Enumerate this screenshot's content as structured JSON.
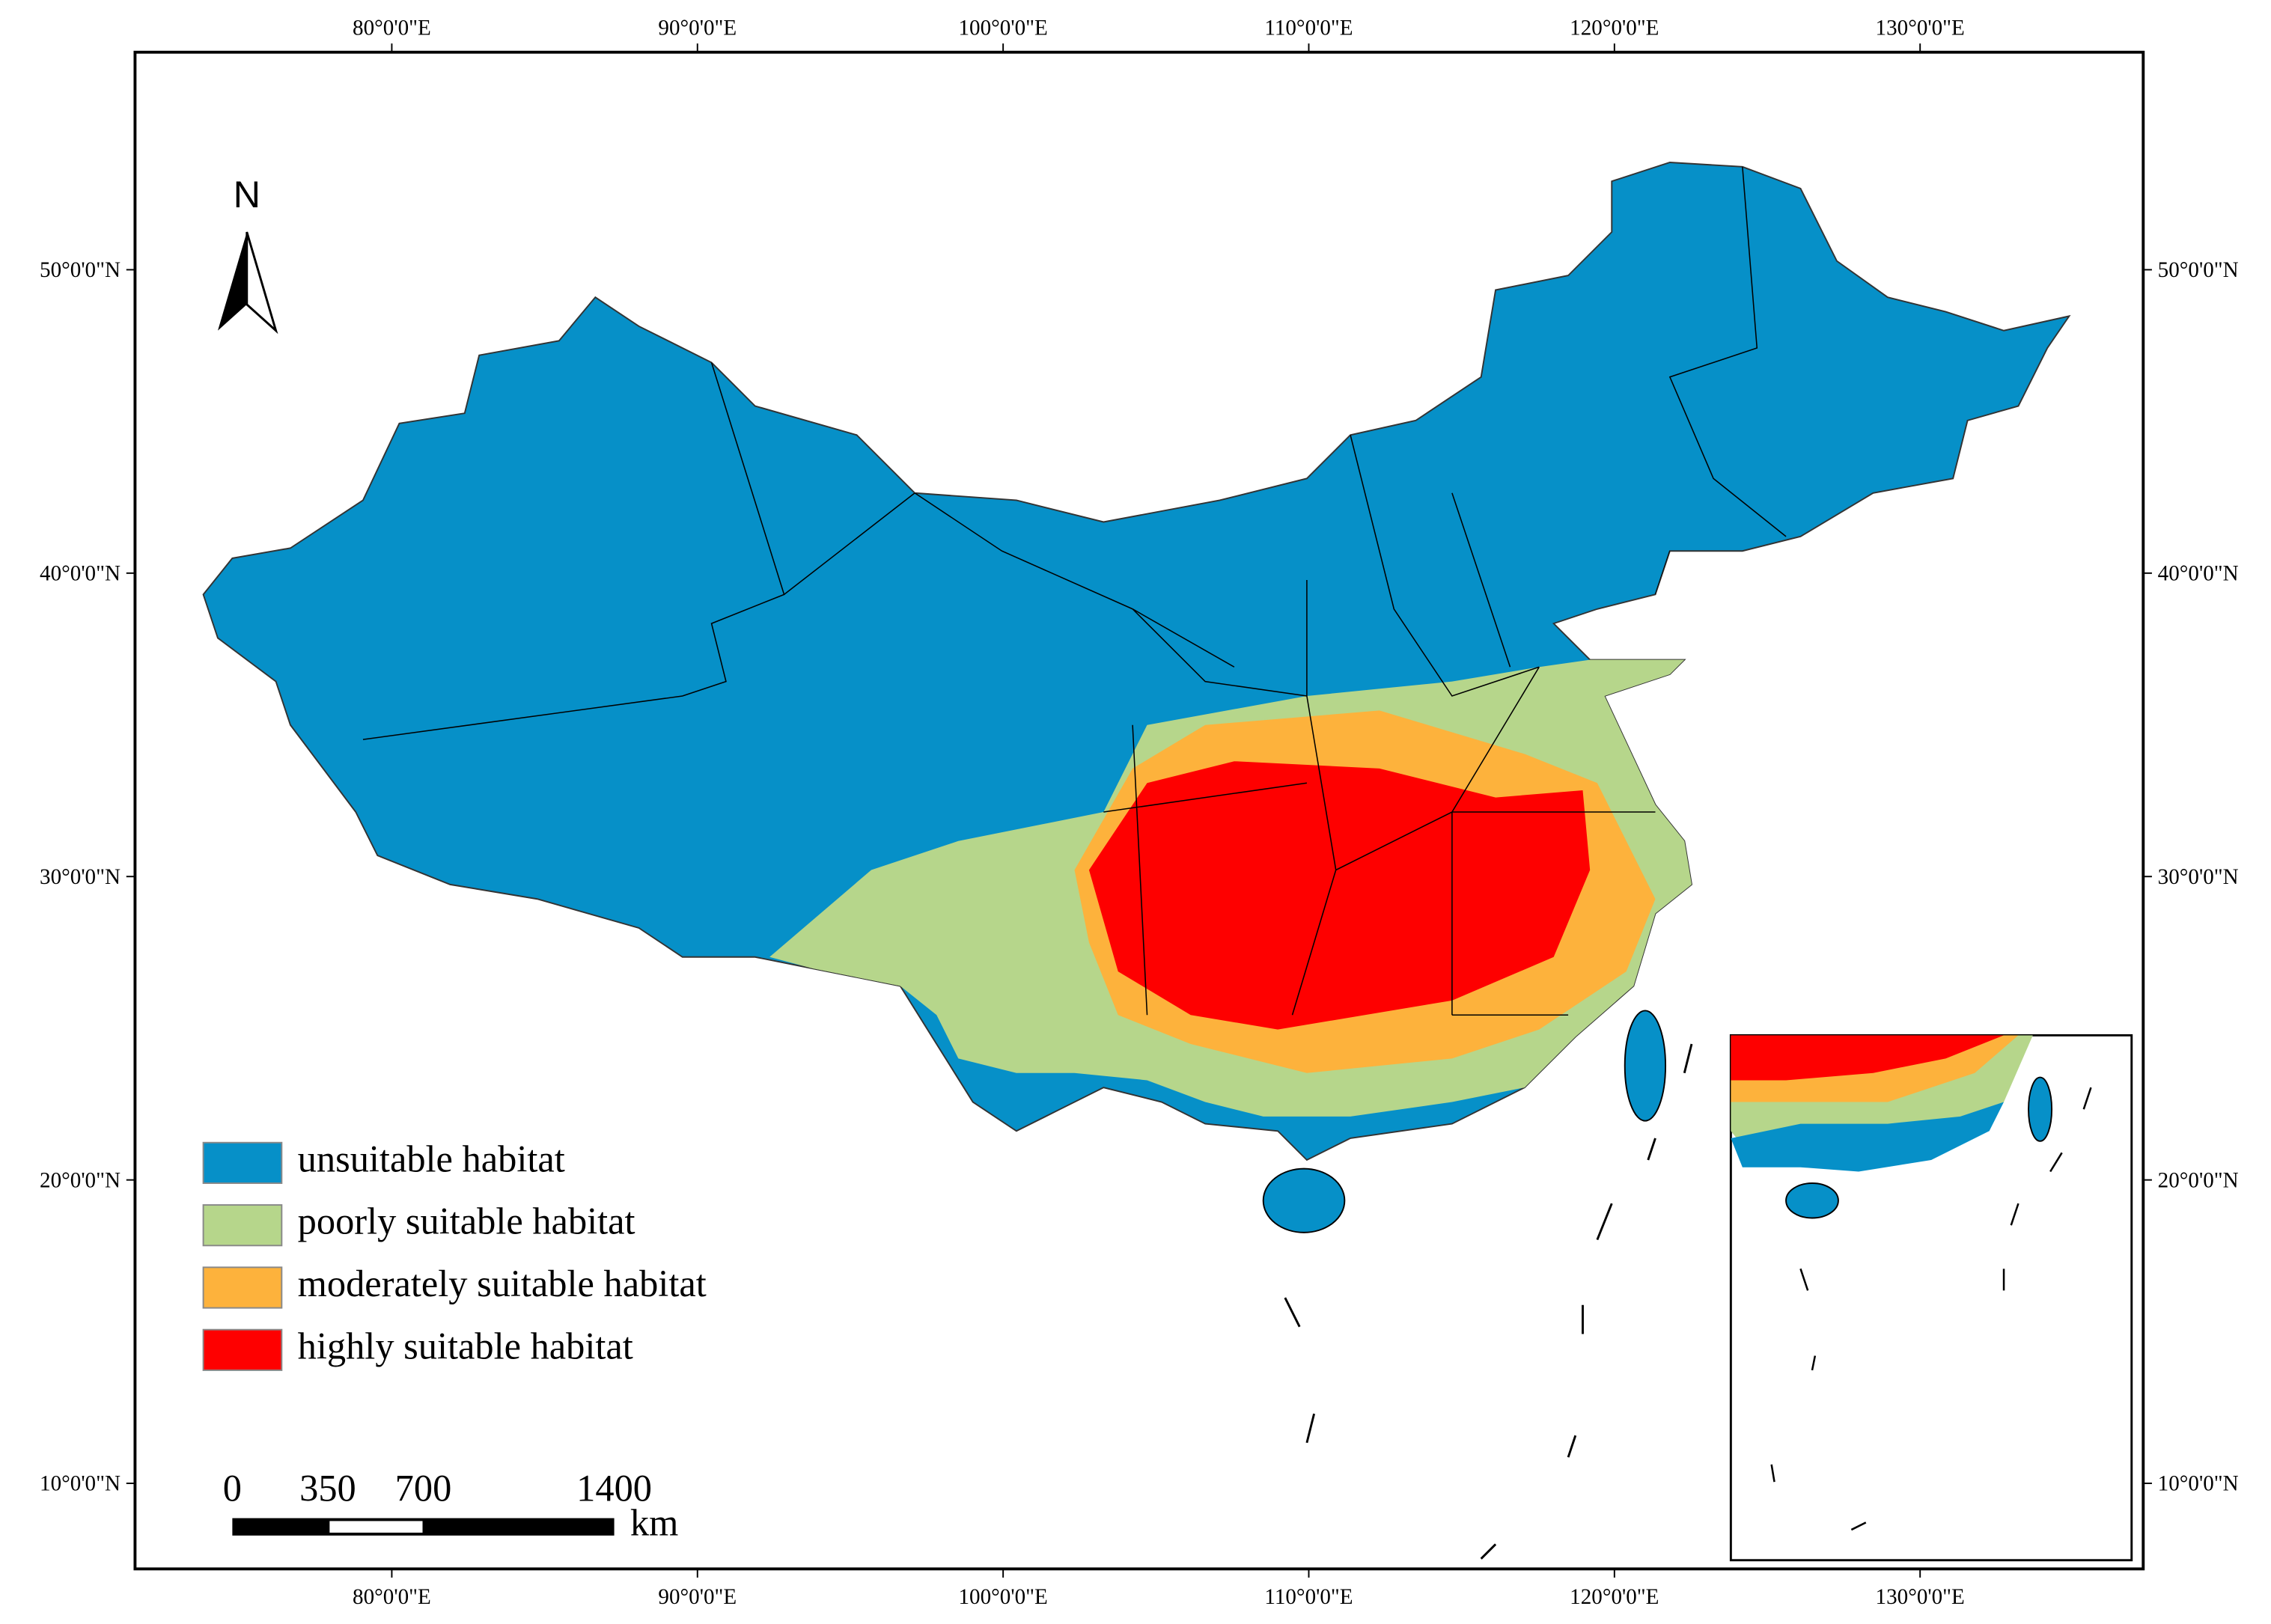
{
  "map": {
    "xlim": [
      71.6,
      137.3
    ],
    "ylim": [
      7.18,
      57.17
    ],
    "xticks": [
      {
        "value": 80,
        "label": "80°0'0\"E"
      },
      {
        "value": 90,
        "label": "90°0'0\"E"
      },
      {
        "value": 100,
        "label": "100°0'0\"E"
      },
      {
        "value": 110,
        "label": "110°0'0\"E"
      },
      {
        "value": 120,
        "label": "120°0'0\"E"
      },
      {
        "value": 130,
        "label": "130°0'0\"E"
      }
    ],
    "yticks": [
      {
        "value": 50,
        "label": "50°0'0\"N"
      },
      {
        "value": 40,
        "label": "40°0'0\"N"
      },
      {
        "value": 30,
        "label": "30°0'0\"N"
      },
      {
        "value": 20,
        "label": "20°0'0\"N"
      },
      {
        "value": 10,
        "label": "10°0'0\"N"
      }
    ],
    "north": "N",
    "legend": [
      {
        "name": "unsuitable habitat",
        "color": "#0690c8"
      },
      {
        "name": "poorly suitable habitat",
        "color": "#b6d68b"
      },
      {
        "name": "moderately suitable habitat",
        "color": "#fdb23c"
      },
      {
        "name": "highly suitable habitat",
        "color": "#fe0000"
      }
    ],
    "scale": {
      "labels": [
        0,
        350,
        700,
        1400
      ],
      "unit": "km"
    }
  }
}
